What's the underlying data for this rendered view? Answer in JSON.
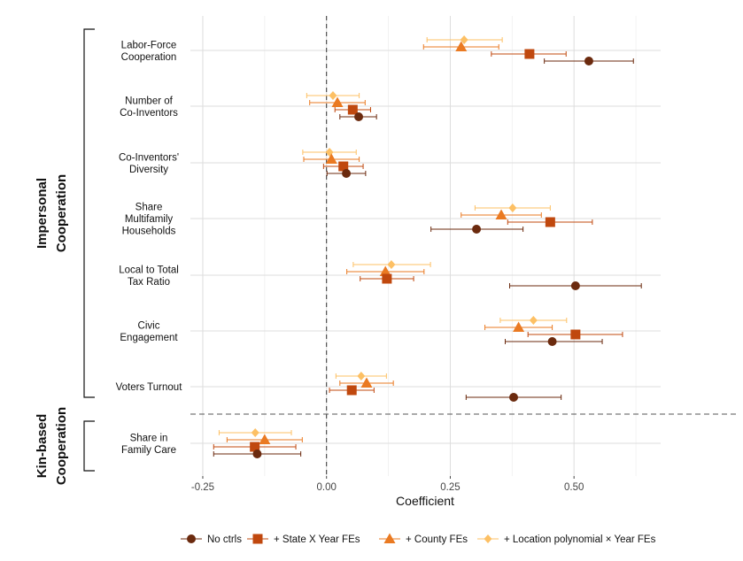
{
  "chart_data": {
    "type": "dot-whisker",
    "xlabel": "Coefficient",
    "xlim": [
      -0.275,
      0.675
    ],
    "xticks": [
      -0.25,
      0.0,
      0.25,
      0.5
    ],
    "xtick_labels": [
      "-0.25",
      "0.00",
      "0.25",
      "0.50"
    ],
    "reference_line": 0,
    "grid": true,
    "groups": [
      {
        "label_lines": [
          "Impersonal",
          "Cooperation"
        ],
        "outcomes": [
          "Labor-Force Cooperation",
          "Number of Co-Inventors",
          "Co-Inventors' Diversity",
          "Share Multifamily Households",
          "Local to Total Tax Ratio",
          "Civic Engagement",
          "Voters Turnout"
        ]
      },
      {
        "label_lines": [
          "Kin-based",
          "Cooperation"
        ],
        "outcomes": [
          "Share in Family Care"
        ]
      }
    ],
    "outcomes": [
      {
        "id": "labor",
        "label_lines": [
          "Labor-Force",
          "Cooperation"
        ]
      },
      {
        "id": "coinv",
        "label_lines": [
          "Number of",
          "Co-Inventors"
        ]
      },
      {
        "id": "codiv",
        "label_lines": [
          "Co-Inventors'",
          "Diversity"
        ]
      },
      {
        "id": "multi",
        "label_lines": [
          "Share",
          "Multifamily",
          "Households"
        ]
      },
      {
        "id": "tax",
        "label_lines": [
          "Local to Total",
          "Tax Ratio"
        ]
      },
      {
        "id": "civic",
        "label_lines": [
          "Civic",
          "Engagement"
        ]
      },
      {
        "id": "voters",
        "label_lines": [
          "Voters Turnout"
        ]
      },
      {
        "id": "family",
        "label_lines": [
          "Share in",
          "Family Care"
        ]
      }
    ],
    "series": [
      {
        "name": "No ctrls",
        "color": "#6b2a0e",
        "marker": "circle",
        "points": [
          {
            "est": 0.53,
            "lo": 0.44,
            "hi": 0.62
          },
          {
            "est": 0.065,
            "lo": 0.027,
            "hi": 0.101
          },
          {
            "est": 0.04,
            "lo": 0.001,
            "hi": 0.079
          },
          {
            "est": 0.303,
            "lo": 0.211,
            "hi": 0.397
          },
          {
            "est": 0.503,
            "lo": 0.37,
            "hi": 0.636
          },
          {
            "est": 0.456,
            "lo": 0.361,
            "hi": 0.557
          },
          {
            "est": 0.378,
            "lo": 0.282,
            "hi": 0.474
          },
          {
            "est": -0.14,
            "lo": -0.228,
            "hi": -0.052
          }
        ]
      },
      {
        "name": "+ State X Year FEs",
        "color": "#c0480e",
        "marker": "square",
        "points": [
          {
            "est": 0.41,
            "lo": 0.333,
            "hi": 0.484
          },
          {
            "est": 0.053,
            "lo": 0.017,
            "hi": 0.089
          },
          {
            "est": 0.034,
            "lo": -0.006,
            "hi": 0.074
          },
          {
            "est": 0.452,
            "lo": 0.366,
            "hi": 0.537
          },
          {
            "est": 0.122,
            "lo": 0.068,
            "hi": 0.176
          },
          {
            "est": 0.503,
            "lo": 0.407,
            "hi": 0.598
          },
          {
            "est": 0.051,
            "lo": 0.006,
            "hi": 0.096
          },
          {
            "est": -0.145,
            "lo": -0.228,
            "hi": -0.062
          }
        ]
      },
      {
        "name": "+ County FEs",
        "color": "#ea7a22",
        "marker": "triangle",
        "points": [
          {
            "est": 0.272,
            "lo": 0.196,
            "hi": 0.348
          },
          {
            "est": 0.022,
            "lo": -0.034,
            "hi": 0.078
          },
          {
            "est": 0.01,
            "lo": -0.046,
            "hi": 0.066
          },
          {
            "est": 0.353,
            "lo": 0.272,
            "hi": 0.434
          },
          {
            "est": 0.119,
            "lo": 0.041,
            "hi": 0.197
          },
          {
            "est": 0.388,
            "lo": 0.32,
            "hi": 0.456
          },
          {
            "est": 0.081,
            "lo": 0.027,
            "hi": 0.135
          },
          {
            "est": -0.125,
            "lo": -0.201,
            "hi": -0.049
          }
        ]
      },
      {
        "name": "+ Location polynomial × Year FEs",
        "color": "#fdc064",
        "marker": "diamond",
        "points": [
          {
            "est": 0.278,
            "lo": 0.203,
            "hi": 0.355
          },
          {
            "est": 0.013,
            "lo": -0.04,
            "hi": 0.066
          },
          {
            "est": 0.006,
            "lo": -0.048,
            "hi": 0.06
          },
          {
            "est": 0.376,
            "lo": 0.3,
            "hi": 0.452
          },
          {
            "est": 0.131,
            "lo": 0.054,
            "hi": 0.21
          },
          {
            "est": 0.418,
            "lo": 0.351,
            "hi": 0.485
          },
          {
            "est": 0.07,
            "lo": 0.019,
            "hi": 0.121
          },
          {
            "est": -0.144,
            "lo": -0.217,
            "hi": -0.071
          }
        ]
      }
    ]
  },
  "legend": {
    "position": "bottom",
    "items": [
      "No ctrls",
      "+ State X Year FEs",
      "+ County FEs",
      "+ Location polynomial × Year FEs"
    ]
  }
}
